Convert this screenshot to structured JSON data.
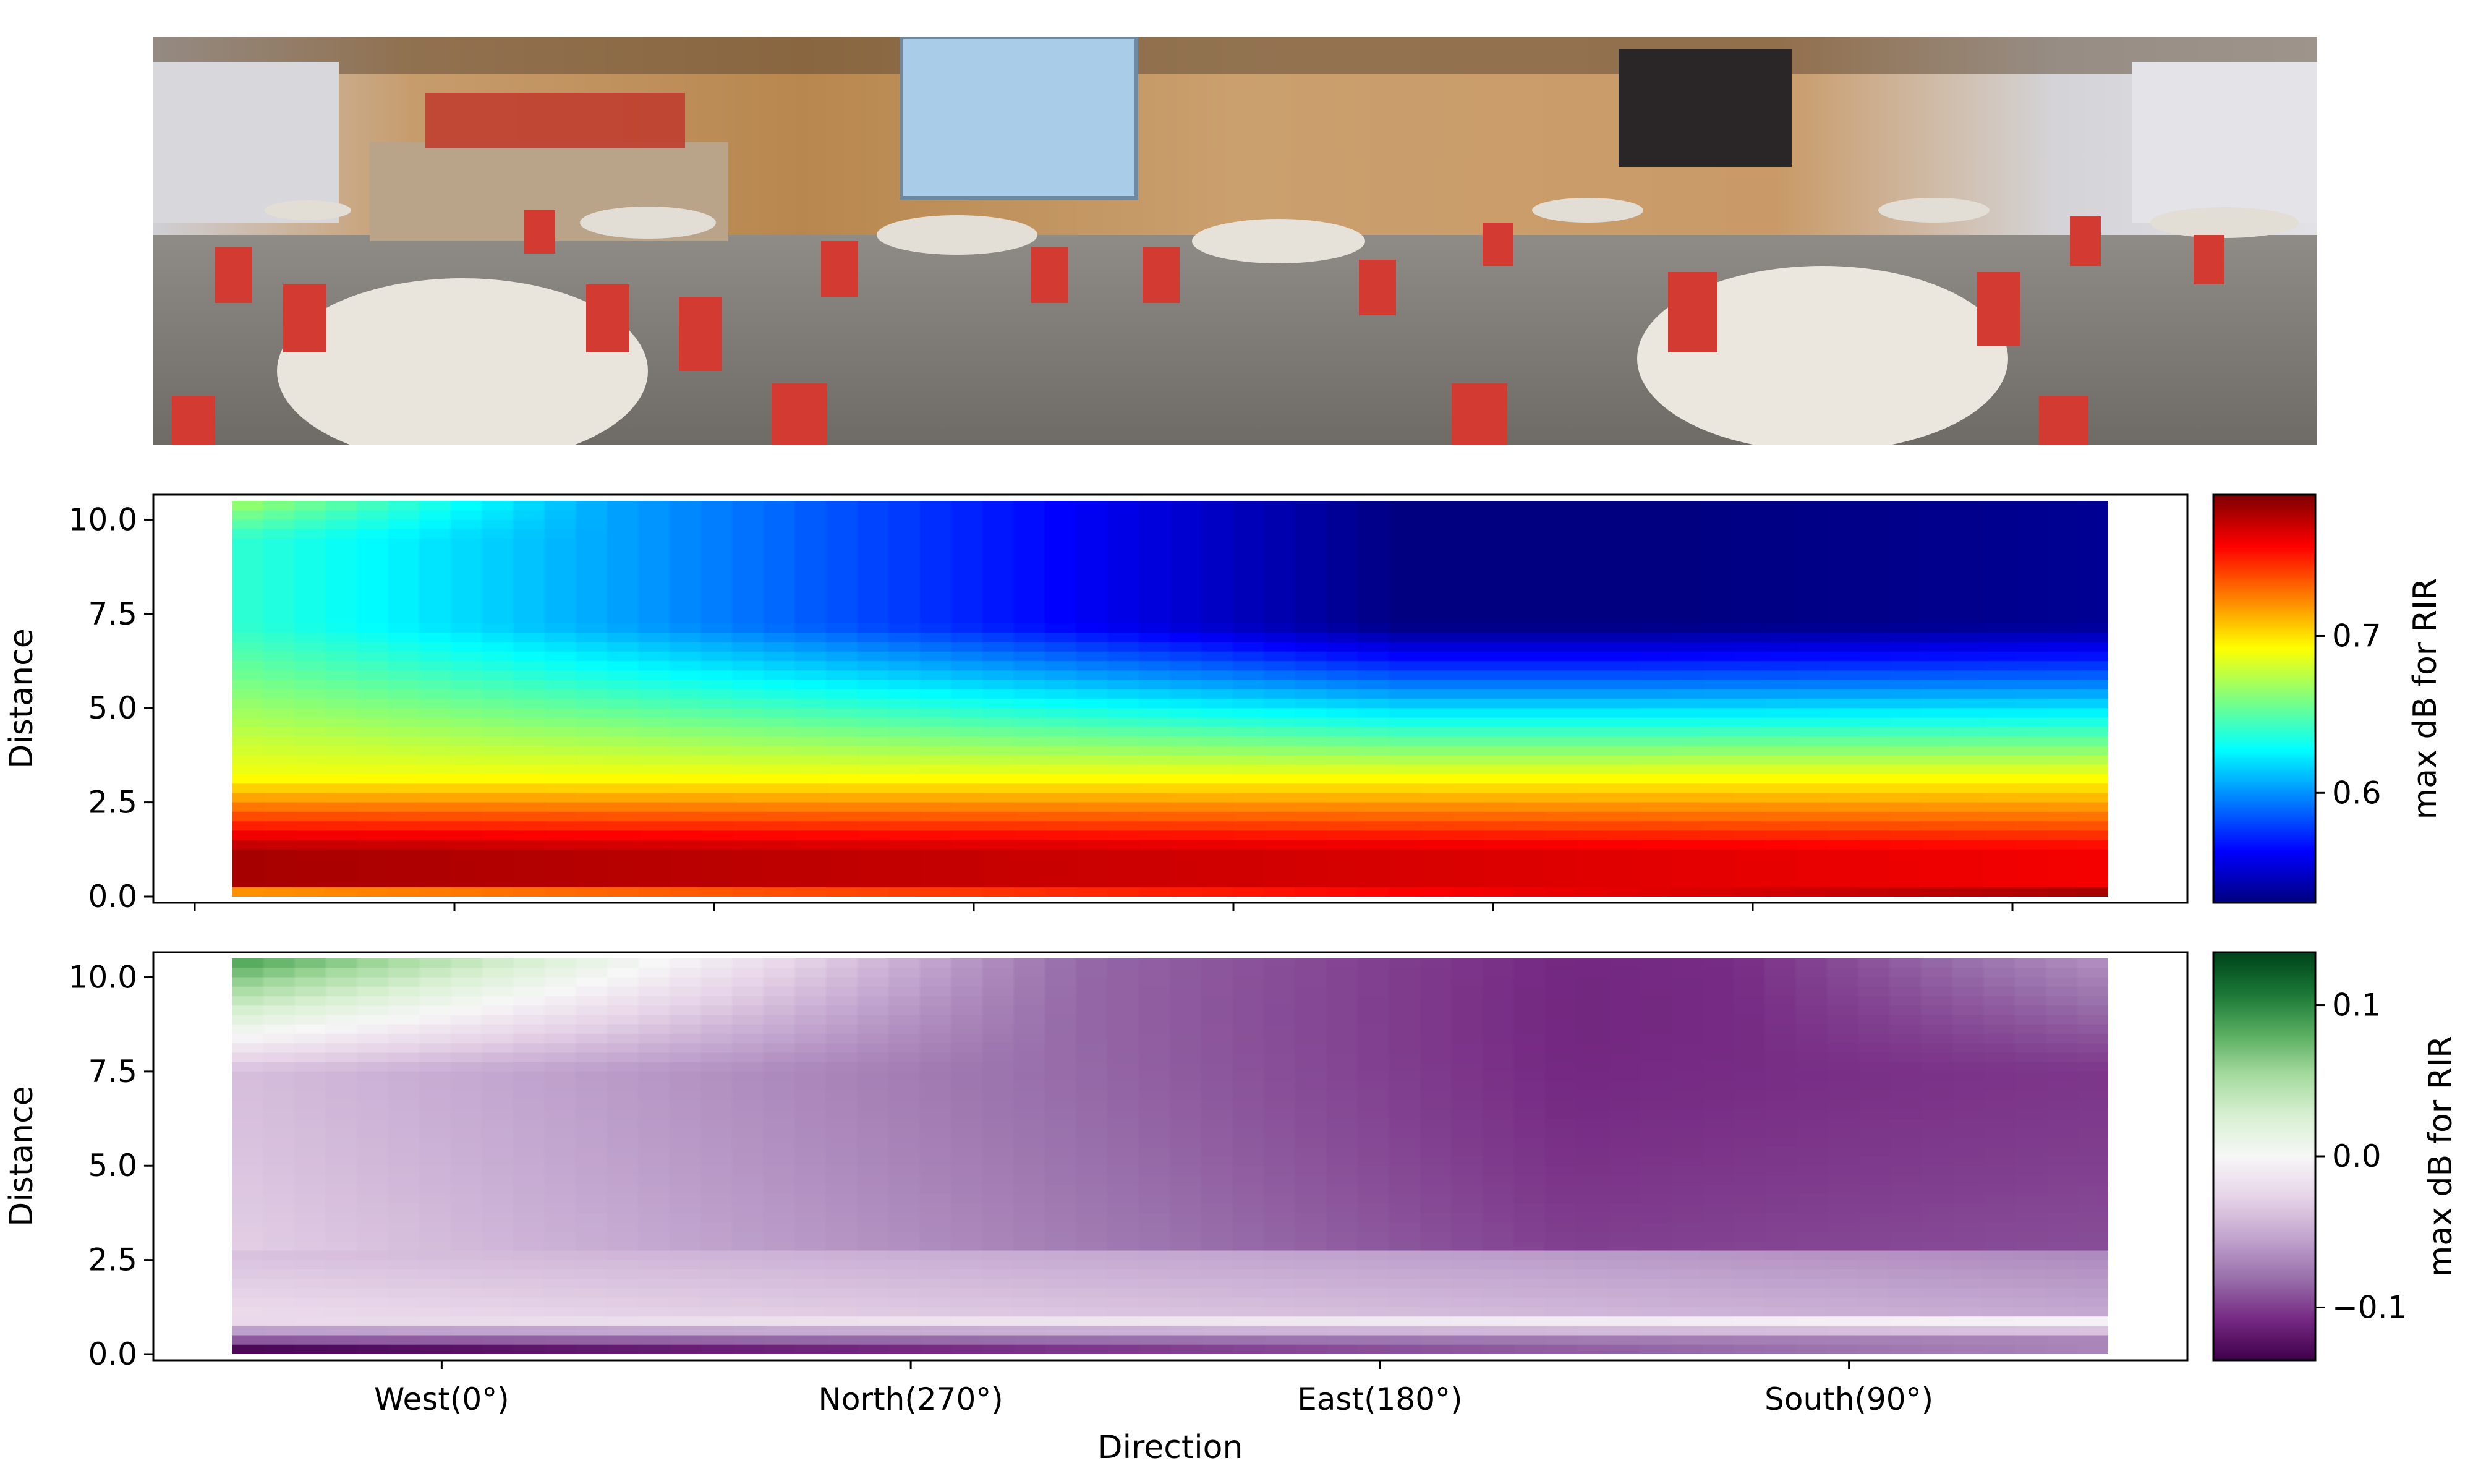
{
  "panorama": {
    "alt": "Panoramic photo of the room"
  },
  "chart_data": [
    {
      "type": "heatmap",
      "title": "",
      "xlabel": "",
      "ylabel": "Distance",
      "xlim": [
        0,
        360
      ],
      "ylim": [
        0,
        10.5
      ],
      "yticks": [
        0.0,
        2.5,
        5.0,
        7.5,
        10.0
      ],
      "ytick_labels": [
        "0.0",
        "2.5",
        "5.0",
        "7.5",
        "10.0"
      ],
      "colormap": "jet",
      "colorbar": {
        "label": "max dB for RIR",
        "range": [
          0.53,
          0.79
        ],
        "ticks": [
          0.6,
          0.7
        ],
        "tick_labels": [
          "0.6",
          "0.7"
        ]
      },
      "grid": false
    },
    {
      "type": "heatmap",
      "title": "",
      "xlabel": "Direction",
      "ylabel": "Distance",
      "xlim": [
        0,
        360
      ],
      "ylim": [
        0,
        10.5
      ],
      "xtick_labels": [
        "West(0°)",
        "North(270°)",
        "East(180°)",
        "South(90°)"
      ],
      "yticks": [
        0.0,
        2.5,
        5.0,
        7.5,
        10.0
      ],
      "ytick_labels": [
        "0.0",
        "2.5",
        "5.0",
        "7.5",
        "10.0"
      ],
      "colormap": "PRGn",
      "colorbar": {
        "label": "max dB for RIR",
        "range": [
          -0.135,
          0.135
        ],
        "ticks": [
          0.1,
          0.0,
          -0.1
        ],
        "tick_labels": [
          "0.1",
          "0.0",
          "−0.1"
        ]
      },
      "grid": false
    }
  ]
}
